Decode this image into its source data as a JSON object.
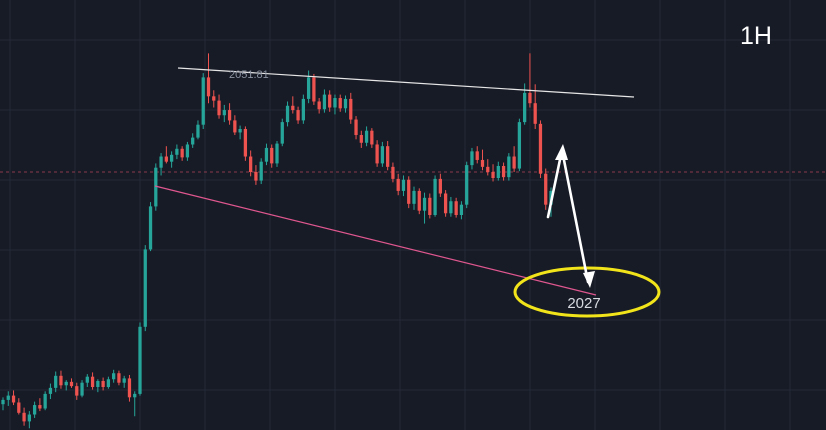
{
  "chart_data": {
    "type": "candlestick",
    "timeframe": "1H",
    "grid": true,
    "ylim": [
      2008,
      2058
    ],
    "y_reference": 2038,
    "high_label": "2051.81",
    "target_label": "2027",
    "colors": {
      "background": "#171b26",
      "grid": "#232a37",
      "up": "#26a69a",
      "down": "#ef5350",
      "resistance_line": "#e6e6e6",
      "support_line": "#e0578f",
      "reference_line": "#8a3a4a",
      "target_ellipse": "#f2e41a",
      "arrow": "#ffffff"
    },
    "candles": [
      [
        2011.0,
        2011.8,
        2010.3,
        2011.5
      ],
      [
        2011.5,
        2012.5,
        2010.8,
        2012.0
      ],
      [
        2012.0,
        2012.6,
        2010.9,
        2011.2
      ],
      [
        2011.2,
        2011.7,
        2009.8,
        2010.0
      ],
      [
        2010.0,
        2010.6,
        2008.5,
        2009.0
      ],
      [
        2009.0,
        2010.2,
        2008.2,
        2009.8
      ],
      [
        2009.8,
        2011.3,
        2009.4,
        2010.9
      ],
      [
        2010.9,
        2011.7,
        2010.2,
        2010.5
      ],
      [
        2010.5,
        2012.5,
        2010.3,
        2012.2
      ],
      [
        2012.2,
        2013.4,
        2011.6,
        2012.9
      ],
      [
        2012.9,
        2014.8,
        2012.4,
        2014.3
      ],
      [
        2014.3,
        2014.9,
        2012.8,
        2013.2
      ],
      [
        2013.2,
        2013.8,
        2012.6,
        2013.6
      ],
      [
        2013.6,
        2014.0,
        2012.9,
        2013.1
      ],
      [
        2013.1,
        2013.5,
        2011.5,
        2012.0
      ],
      [
        2012.0,
        2013.8,
        2011.8,
        2013.5
      ],
      [
        2013.5,
        2014.5,
        2013.0,
        2014.2
      ],
      [
        2014.2,
        2014.7,
        2012.7,
        2013.0
      ],
      [
        2013.0,
        2013.9,
        2012.4,
        2013.7
      ],
      [
        2013.7,
        2014.1,
        2012.6,
        2013.0
      ],
      [
        2013.0,
        2014.2,
        2012.8,
        2013.9
      ],
      [
        2013.9,
        2015.0,
        2013.5,
        2014.6
      ],
      [
        2014.6,
        2014.9,
        2013.2,
        2013.5
      ],
      [
        2013.5,
        2014.3,
        2012.9,
        2014.0
      ],
      [
        2014.0,
        2014.4,
        2011.3,
        2011.8
      ],
      [
        2011.8,
        2012.5,
        2009.6,
        2012.2
      ],
      [
        2012.2,
        2020.5,
        2012.0,
        2020.0
      ],
      [
        2020.0,
        2029.5,
        2019.5,
        2029.0
      ],
      [
        2029.0,
        2034.5,
        2028.8,
        2034.0
      ],
      [
        2034.0,
        2039.0,
        2033.5,
        2038.5
      ],
      [
        2038.5,
        2040.2,
        2037.6,
        2039.8
      ],
      [
        2039.8,
        2041.0,
        2039.0,
        2039.2
      ],
      [
        2039.2,
        2040.4,
        2038.5,
        2040.0
      ],
      [
        2040.0,
        2041.2,
        2039.5,
        2040.7
      ],
      [
        2040.7,
        2041.0,
        2039.3,
        2039.7
      ],
      [
        2039.7,
        2041.5,
        2039.3,
        2041.2
      ],
      [
        2041.2,
        2042.5,
        2040.8,
        2042.0
      ],
      [
        2042.0,
        2044.0,
        2041.8,
        2043.5
      ],
      [
        2043.5,
        2049.5,
        2043.0,
        2049.0
      ],
      [
        2049.0,
        2051.8,
        2046.0,
        2046.8
      ],
      [
        2046.8,
        2047.5,
        2045.5,
        2046.3
      ],
      [
        2046.3,
        2047.0,
        2044.2,
        2044.6
      ],
      [
        2044.6,
        2045.8,
        2043.8,
        2045.2
      ],
      [
        2045.2,
        2046.0,
        2043.5,
        2044.0
      ],
      [
        2044.0,
        2044.6,
        2042.3,
        2042.6
      ],
      [
        2042.6,
        2043.4,
        2041.8,
        2043.0
      ],
      [
        2043.0,
        2043.3,
        2039.3,
        2039.8
      ],
      [
        2039.8,
        2040.5,
        2037.5,
        2038.0
      ],
      [
        2038.0,
        2038.8,
        2036.5,
        2037.0
      ],
      [
        2037.0,
        2039.6,
        2036.6,
        2039.2
      ],
      [
        2039.2,
        2041.3,
        2038.8,
        2040.8
      ],
      [
        2040.8,
        2041.2,
        2038.5,
        2039.0
      ],
      [
        2039.0,
        2041.6,
        2038.6,
        2041.3
      ],
      [
        2041.3,
        2044.2,
        2041.0,
        2043.8
      ],
      [
        2043.8,
        2046.2,
        2043.3,
        2045.7
      ],
      [
        2045.7,
        2046.8,
        2044.8,
        2045.2
      ],
      [
        2045.2,
        2045.6,
        2043.6,
        2044.0
      ],
      [
        2044.0,
        2047.0,
        2043.6,
        2046.5
      ],
      [
        2046.5,
        2049.8,
        2046.0,
        2049.0
      ],
      [
        2049.0,
        2049.4,
        2045.8,
        2046.2
      ],
      [
        2046.2,
        2046.6,
        2044.8,
        2045.3
      ],
      [
        2045.3,
        2047.6,
        2044.9,
        2047.0
      ],
      [
        2047.0,
        2047.5,
        2045.0,
        2045.5
      ],
      [
        2045.5,
        2047.0,
        2044.7,
        2046.6
      ],
      [
        2046.6,
        2047.0,
        2045.0,
        2045.4
      ],
      [
        2045.4,
        2046.9,
        2044.9,
        2046.5
      ],
      [
        2046.5,
        2047.2,
        2043.6,
        2044.1
      ],
      [
        2044.1,
        2044.5,
        2041.8,
        2042.3
      ],
      [
        2042.3,
        2042.8,
        2040.8,
        2041.4
      ],
      [
        2041.4,
        2043.3,
        2041.0,
        2042.8
      ],
      [
        2042.8,
        2043.1,
        2040.8,
        2041.2
      ],
      [
        2041.2,
        2041.7,
        2038.6,
        2039.0
      ],
      [
        2039.0,
        2041.5,
        2038.6,
        2041.0
      ],
      [
        2041.0,
        2041.6,
        2038.2,
        2038.6
      ],
      [
        2038.6,
        2039.1,
        2036.8,
        2037.2
      ],
      [
        2037.2,
        2037.8,
        2035.3,
        2035.8
      ],
      [
        2035.8,
        2037.6,
        2035.2,
        2037.1
      ],
      [
        2037.1,
        2037.5,
        2033.8,
        2034.3
      ],
      [
        2034.3,
        2036.3,
        2033.6,
        2035.8
      ],
      [
        2035.8,
        2036.1,
        2033.1,
        2033.5
      ],
      [
        2033.5,
        2035.6,
        2032.0,
        2035.0
      ],
      [
        2035.0,
        2035.5,
        2032.6,
        2033.0
      ],
      [
        2033.0,
        2037.6,
        2032.8,
        2037.2
      ],
      [
        2037.2,
        2037.8,
        2035.1,
        2035.5
      ],
      [
        2035.5,
        2035.9,
        2032.8,
        2033.2
      ],
      [
        2033.2,
        2035.1,
        2032.8,
        2034.6
      ],
      [
        2034.6,
        2035.0,
        2032.7,
        2033.0
      ],
      [
        2033.0,
        2034.6,
        2032.5,
        2034.2
      ],
      [
        2034.2,
        2039.2,
        2033.8,
        2038.8
      ],
      [
        2038.8,
        2040.8,
        2038.3,
        2040.4
      ],
      [
        2040.4,
        2041.0,
        2039.0,
        2039.4
      ],
      [
        2039.4,
        2040.6,
        2038.2,
        2038.6
      ],
      [
        2038.6,
        2039.5,
        2037.6,
        2038.0
      ],
      [
        2038.0,
        2038.9,
        2036.9,
        2037.3
      ],
      [
        2037.3,
        2039.2,
        2037.0,
        2038.7
      ],
      [
        2038.7,
        2039.1,
        2037.0,
        2037.4
      ],
      [
        2037.4,
        2040.2,
        2037.0,
        2039.8
      ],
      [
        2039.8,
        2041.0,
        2038.0,
        2038.4
      ],
      [
        2038.4,
        2044.2,
        2038.1,
        2043.8
      ],
      [
        2043.8,
        2048.3,
        2043.5,
        2047.2
      ],
      [
        2047.2,
        2051.8,
        2045.5,
        2046.0
      ],
      [
        2046.0,
        2048.2,
        2043.0,
        2043.6
      ],
      [
        2043.6,
        2044.0,
        2037.3,
        2037.8
      ],
      [
        2037.8,
        2038.4,
        2033.6,
        2034.2
      ],
      [
        2034.2,
        2036.2,
        2032.8,
        2035.8
      ]
    ]
  },
  "label": {
    "timeframe": "1H",
    "high": "2051.81",
    "target": "2027"
  }
}
